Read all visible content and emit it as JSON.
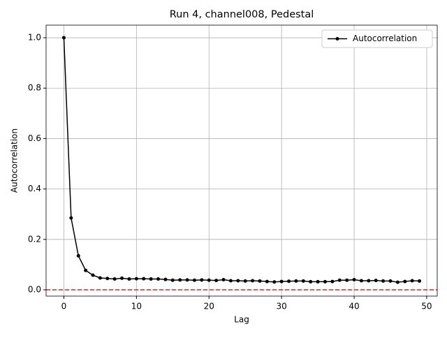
{
  "chart_data": {
    "type": "line",
    "title": "Run 4, channel008, Pedestal",
    "x_label": "Lag",
    "y_label": "Autocorrelation",
    "x": [
      0,
      1,
      2,
      3,
      4,
      5,
      6,
      7,
      8,
      9,
      10,
      11,
      12,
      13,
      14,
      15,
      16,
      17,
      18,
      19,
      20,
      21,
      22,
      23,
      24,
      25,
      26,
      27,
      28,
      29,
      30,
      31,
      32,
      33,
      34,
      35,
      36,
      37,
      38,
      39,
      40,
      41,
      42,
      43,
      44,
      45,
      46,
      47,
      48,
      49
    ],
    "series": [
      {
        "name": "Autocorrelation",
        "color": "#000000",
        "values": [
          1.0,
          0.285,
          0.135,
          0.077,
          0.058,
          0.047,
          0.045,
          0.043,
          0.046,
          0.043,
          0.044,
          0.044,
          0.043,
          0.043,
          0.041,
          0.038,
          0.039,
          0.039,
          0.038,
          0.039,
          0.038,
          0.037,
          0.04,
          0.036,
          0.036,
          0.035,
          0.036,
          0.035,
          0.033,
          0.031,
          0.033,
          0.034,
          0.035,
          0.035,
          0.032,
          0.032,
          0.032,
          0.033,
          0.038,
          0.038,
          0.04,
          0.036,
          0.036,
          0.037,
          0.035,
          0.035,
          0.03,
          0.033,
          0.036,
          0.035
        ]
      }
    ],
    "reference_line": {
      "value": 0,
      "color": "#d62728"
    },
    "xlim": [
      -2.45,
      51.45
    ],
    "xticks": [
      0,
      10,
      20,
      30,
      40,
      50
    ],
    "ylim": [
      -0.025,
      1.05
    ],
    "yticks": [
      {
        "value": 0,
        "label": "0.0"
      },
      0.2,
      0.4,
      0.6,
      0.8,
      {
        "value": 1,
        "label": "1.0"
      }
    ],
    "grid": true,
    "legend_position": "upper right"
  }
}
